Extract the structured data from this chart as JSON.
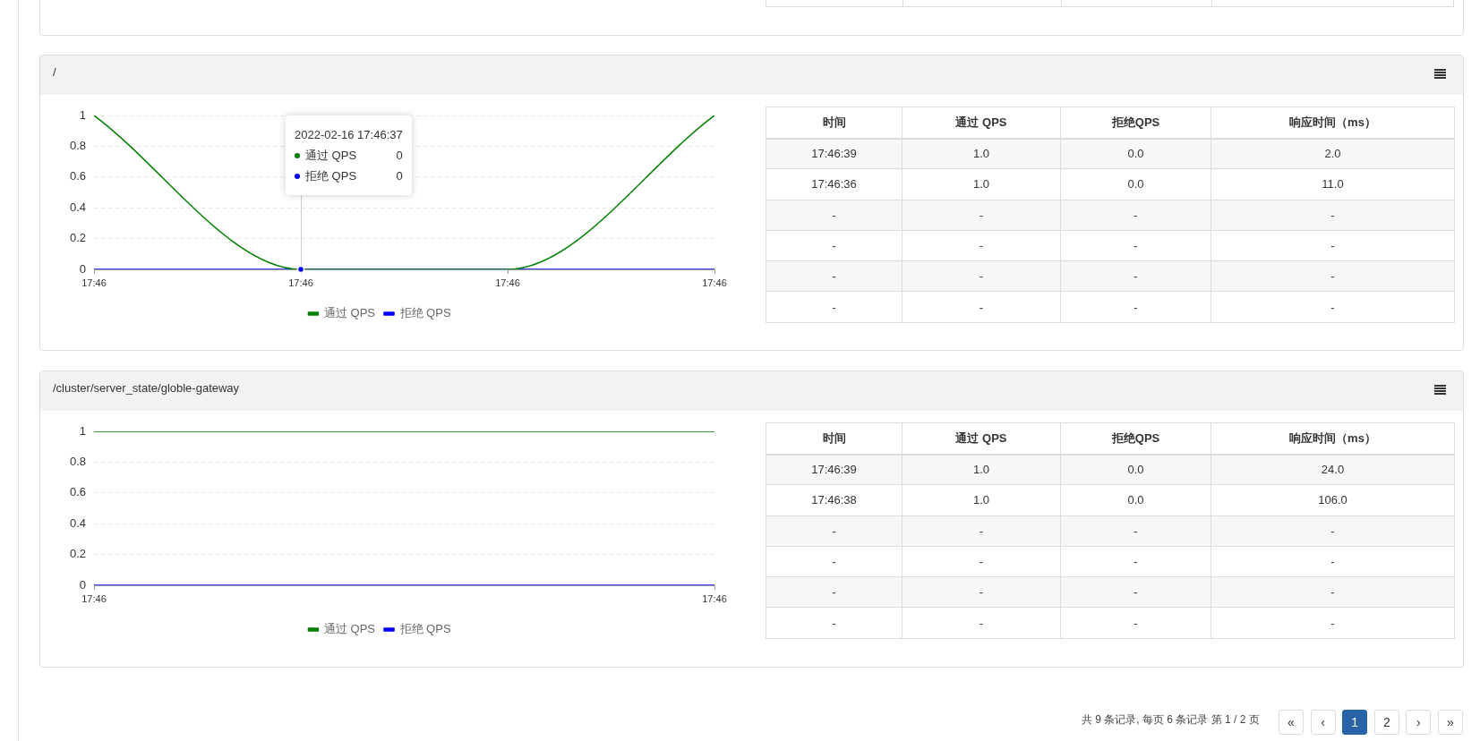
{
  "chart_data": [
    {
      "type": "line",
      "title": "/",
      "x": [
        "2022-02-16T17:46:36",
        "2022-02-16T17:46:37",
        "2022-02-16T17:46:38",
        "2022-02-16T17:46:39"
      ],
      "series": [
        {
          "name": "通过 QPS",
          "color": "#008000",
          "values": [
            1,
            0,
            0,
            1
          ]
        },
        {
          "name": "拒绝 QPS",
          "color": "#0000ff",
          "values": [
            0,
            0,
            0,
            0
          ]
        }
      ],
      "xlim": [
        "2022-02-16T17:46:36",
        "2022-02-16T17:46:39"
      ],
      "xticks": [
        {
          "value": "2022-02-16T17:46:36",
          "label": "17:46"
        },
        {
          "value": "2022-02-16T17:46:37",
          "label": "17:46"
        },
        {
          "value": "2022-02-16T17:46:38",
          "label": "17:46"
        },
        {
          "value": "2022-02-16T17:46:39",
          "label": "17:46"
        }
      ],
      "ylim": [
        0,
        1
      ],
      "yticks": [
        0,
        0.2,
        0.4,
        0.6,
        0.8,
        1
      ],
      "grid": "y",
      "legend": "bottom",
      "annotations": [
        {
          "text": "2022-02-16 17:46:37",
          "x": "2022-02-16T17:46:37",
          "y": 0
        },
        "0",
        "0"
      ]
    },
    {
      "type": "other",
      "categories": [
        "时间",
        "通过 QPS",
        "拒绝QPS",
        "响应时间（ms）"
      ],
      "cell_labels": [
        [
          "17:46:39",
          "1.0",
          "0.0",
          "2.0"
        ],
        [
          "17:46:36",
          "1.0",
          "0.0",
          "11.0"
        ],
        [
          "-",
          "-",
          "-",
          "-"
        ],
        [
          "-",
          "-",
          "-",
          "-"
        ],
        [
          "-",
          "-",
          "-",
          "-"
        ],
        [
          "-",
          "-",
          "-",
          "-"
        ]
      ]
    },
    {
      "type": "line",
      "title": "/cluster/server_state/globle-gateway",
      "x": [
        "2022-02-16T17:46:38",
        "2022-02-16T17:46:39"
      ],
      "series": [
        {
          "name": "通过 QPS",
          "color": "#008000",
          "values": [
            1,
            1
          ]
        },
        {
          "name": "拒绝 QPS",
          "color": "#0000ff",
          "values": [
            0,
            0
          ]
        }
      ],
      "xlim": [
        "2022-02-16T17:46:38",
        "2022-02-16T17:46:39"
      ],
      "xticks": [
        {
          "value": "2022-02-16T17:46:38",
          "label": "17:46"
        },
        {
          "value": "2022-02-16T17:46:39",
          "label": "17:46"
        }
      ],
      "ylim": [
        0,
        1
      ],
      "yticks": [
        0,
        0.2,
        0.4,
        0.6,
        0.8,
        1
      ],
      "grid": "y",
      "legend": "bottom"
    },
    {
      "type": "other",
      "categories": [
        "时间",
        "通过 QPS",
        "拒绝QPS",
        "响应时间（ms）"
      ],
      "cell_labels": [
        [
          "17:46:39",
          "1.0",
          "0.0",
          "24.0"
        ],
        [
          "17:46:38",
          "1.0",
          "0.0",
          "106.0"
        ],
        [
          "-",
          "-",
          "-",
          "-"
        ],
        [
          "-",
          "-",
          "-",
          "-"
        ],
        [
          "-",
          "-",
          "-",
          "-"
        ],
        [
          "-",
          "-",
          "-",
          "-"
        ]
      ]
    },
    {
      "type": "other",
      "annotations": [
        "共 9 条记录, 每页 6 条记录 第 1 / 2 页"
      ],
      "categories": [
        "«",
        "‹",
        "1",
        "2",
        "›",
        "»"
      ]
    }
  ]
}
